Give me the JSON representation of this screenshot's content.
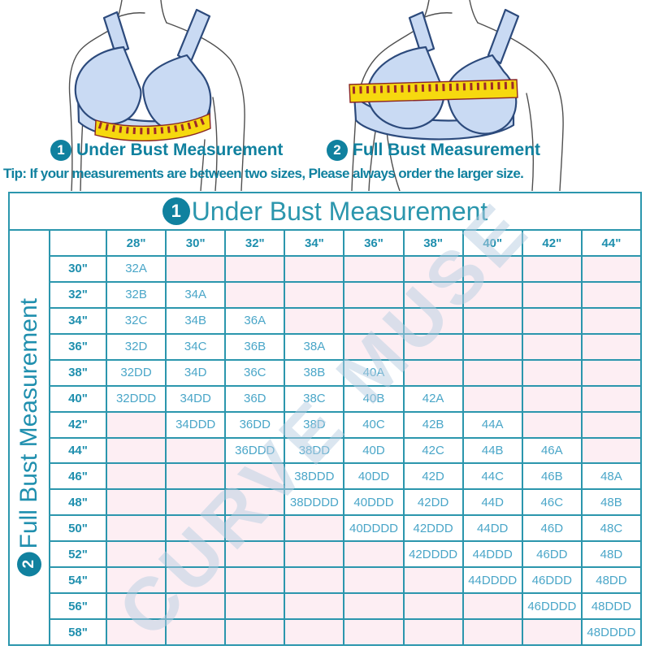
{
  "illustrations": {
    "caption_1": {
      "number": "1",
      "label": "Under Bust Measurement"
    },
    "caption_2": {
      "number": "2",
      "label": "Full Bust Measurement"
    }
  },
  "tip_text": "Tip: If your measurements are between two sizes, Please always order the larger size.",
  "watermark": "CURVE MUSE",
  "chart_data": {
    "type": "table",
    "title": "Under Bust Measurement",
    "title_badge": "1",
    "row_axis_label": "Full Bust Measurement",
    "row_axis_badge": "2",
    "col_headers": [
      "28\"",
      "30\"",
      "32\"",
      "34\"",
      "36\"",
      "38\"",
      "40\"",
      "42\"",
      "44\""
    ],
    "row_headers": [
      "30\"",
      "32\"",
      "34\"",
      "36\"",
      "38\"",
      "40\"",
      "42\"",
      "44\"",
      "46\"",
      "48\"",
      "50\"",
      "52\"",
      "54\"",
      "56\"",
      "58\""
    ],
    "cells": [
      [
        "32A",
        "",
        "",
        "",
        "",
        "",
        "",
        "",
        ""
      ],
      [
        "32B",
        "34A",
        "",
        "",
        "",
        "",
        "",
        "",
        ""
      ],
      [
        "32C",
        "34B",
        "36A",
        "",
        "",
        "",
        "",
        "",
        ""
      ],
      [
        "32D",
        "34C",
        "36B",
        "38A",
        "",
        "",
        "",
        "",
        ""
      ],
      [
        "32DD",
        "34D",
        "36C",
        "38B",
        "40A",
        "",
        "",
        "",
        ""
      ],
      [
        "32DDD",
        "34DD",
        "36D",
        "38C",
        "40B",
        "42A",
        "",
        "",
        ""
      ],
      [
        "",
        "34DDD",
        "36DD",
        "38D",
        "40C",
        "42B",
        "44A",
        "",
        ""
      ],
      [
        "",
        "",
        "36DDD",
        "38DD",
        "40D",
        "42C",
        "44B",
        "46A",
        ""
      ],
      [
        "",
        "",
        "",
        "38DDD",
        "40DD",
        "42D",
        "44C",
        "46B",
        "48A"
      ],
      [
        "",
        "",
        "",
        "38DDDD",
        "40DDD",
        "42DD",
        "44D",
        "46C",
        "48B"
      ],
      [
        "",
        "",
        "",
        "",
        "40DDDD",
        "42DDD",
        "44DD",
        "46D",
        "48C"
      ],
      [
        "",
        "",
        "",
        "",
        "",
        "42DDDD",
        "44DDD",
        "46DD",
        "48D"
      ],
      [
        "",
        "",
        "",
        "",
        "",
        "",
        "44DDDD",
        "46DDD",
        "48DD"
      ],
      [
        "",
        "",
        "",
        "",
        "",
        "",
        "",
        "46DDDD",
        "48DDD"
      ],
      [
        "",
        "",
        "",
        "",
        "",
        "",
        "",
        "",
        "48DDDD"
      ]
    ]
  },
  "colors": {
    "accent_teal": "#10819f",
    "grid_teal": "#2b96ad",
    "cell_text": "#4aa6c8",
    "empty_cell_pink": "#fdeef3",
    "watermark_blue": "#b9cfe3",
    "bra_fill": "#c9daf3",
    "bra_outline": "#2c4a7c",
    "tape_yellow": "#f6d90f",
    "tape_marks": "#9c2a2a"
  }
}
